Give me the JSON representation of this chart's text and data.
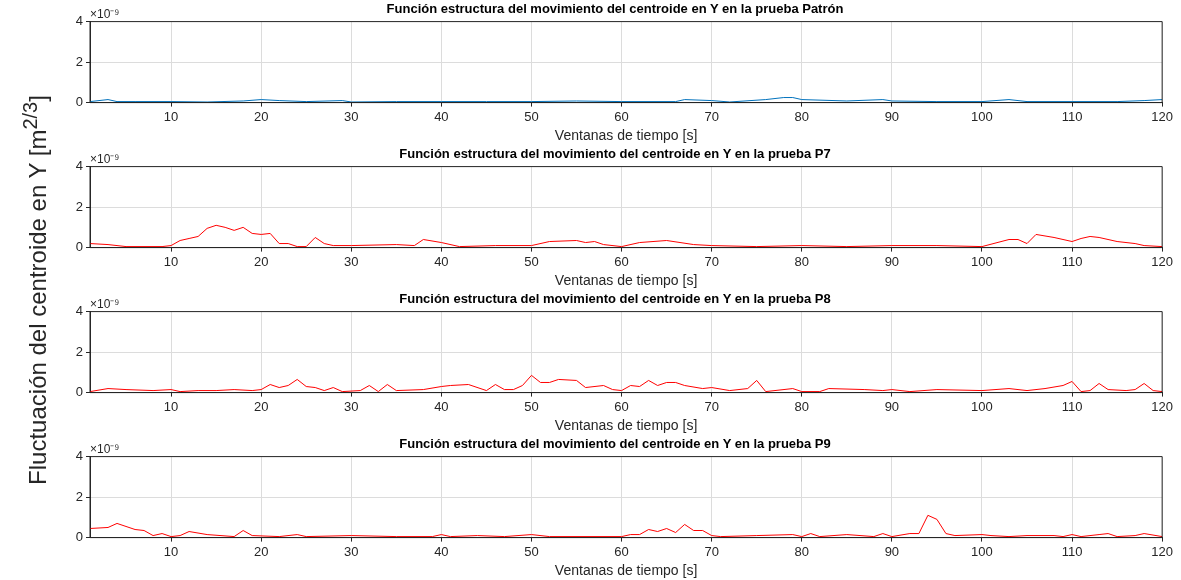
{
  "chart_data": [
    {
      "type": "line",
      "title": "Función estructura del movimiento del centroide en Y en la prueba Patrón",
      "xlabel": "Ventanas de tiempo [s]",
      "ylabel": "Fluctuación del centroide en Y [m$^{2/3}$]",
      "annotations": [
        "×10⁻⁹"
      ],
      "xlim": [
        1,
        120
      ],
      "xticks": [
        10,
        20,
        30,
        40,
        50,
        60,
        70,
        80,
        90,
        100,
        110,
        120
      ],
      "ylim": [
        0,
        4
      ],
      "yticks": [
        0,
        2,
        4
      ],
      "grid": true,
      "legend": false,
      "marker": "none",
      "line_style": "solid",
      "x": [
        1,
        3,
        4,
        6,
        10,
        14,
        18,
        20,
        22,
        25,
        29,
        30,
        35,
        40,
        45,
        50,
        55,
        60,
        66,
        67,
        70,
        72,
        76,
        78,
        79,
        80,
        85,
        89,
        90,
        95,
        100,
        103,
        105,
        110,
        115,
        118,
        120
      ],
      "series": [
        {
          "color": "#0072bd",
          "values": [
            0.05,
            0.15,
            0.05,
            0.05,
            0.05,
            0.03,
            0.08,
            0.15,
            0.1,
            0.05,
            0.1,
            0.03,
            0.05,
            0.05,
            0.05,
            0.05,
            0.08,
            0.05,
            0.05,
            0.15,
            0.1,
            0.03,
            0.15,
            0.25,
            0.25,
            0.15,
            0.08,
            0.15,
            0.08,
            0.05,
            0.05,
            0.15,
            0.05,
            0.05,
            0.05,
            0.1,
            0.15
          ]
        }
      ]
    },
    {
      "type": "line",
      "title": "Función estructura del movimiento del centroide en Y en la prueba P7",
      "xlabel": "Ventanas de tiempo [s]",
      "annotations": [
        "×10⁻⁹"
      ],
      "xlim": [
        1,
        120
      ],
      "xticks": [
        10,
        20,
        30,
        40,
        50,
        60,
        70,
        80,
        90,
        100,
        110,
        120
      ],
      "ylim": [
        0,
        4
      ],
      "yticks": [
        0,
        2,
        4
      ],
      "grid": true,
      "legend": false,
      "marker": "none",
      "line_style": "solid",
      "x": [
        1,
        3,
        5,
        9,
        10,
        11,
        12,
        13,
        14,
        15,
        16,
        17,
        18,
        19,
        20,
        21,
        22,
        23,
        24,
        25,
        26,
        27,
        28,
        30,
        35,
        37,
        38,
        40,
        42,
        46,
        50,
        52,
        55,
        56,
        57,
        58,
        60,
        62,
        65,
        68,
        70,
        75,
        80,
        85,
        90,
        95,
        100,
        103,
        104,
        105,
        106,
        108,
        110,
        111,
        112,
        113,
        115,
        117,
        118,
        120
      ],
      "series": [
        {
          "color": "#ff0000",
          "values": [
            0.2,
            0.15,
            0.05,
            0.05,
            0.1,
            0.35,
            0.45,
            0.55,
            0.95,
            1.1,
            1.0,
            0.85,
            1.0,
            0.7,
            0.65,
            0.7,
            0.2,
            0.2,
            0.05,
            0.05,
            0.5,
            0.2,
            0.1,
            0.1,
            0.15,
            0.1,
            0.4,
            0.25,
            0.05,
            0.1,
            0.1,
            0.3,
            0.35,
            0.25,
            0.3,
            0.15,
            0.05,
            0.25,
            0.35,
            0.15,
            0.1,
            0.05,
            0.1,
            0.05,
            0.1,
            0.1,
            0.05,
            0.4,
            0.4,
            0.2,
            0.65,
            0.5,
            0.3,
            0.45,
            0.55,
            0.5,
            0.3,
            0.2,
            0.1,
            0.05
          ]
        }
      ]
    },
    {
      "type": "line",
      "title": "Función estructura del movimiento del centroide en Y en la prueba P8",
      "xlabel": "Ventanas de tiempo [s]",
      "annotations": [
        "×10⁻⁹"
      ],
      "xlim": [
        1,
        120
      ],
      "xticks": [
        10,
        20,
        30,
        40,
        50,
        60,
        70,
        80,
        90,
        100,
        110,
        120
      ],
      "ylim": [
        0,
        4
      ],
      "yticks": [
        0,
        2,
        4
      ],
      "grid": true,
      "legend": false,
      "marker": "none",
      "line_style": "solid",
      "x": [
        1,
        3,
        5,
        8,
        10,
        11,
        13,
        15,
        17,
        19,
        20,
        21,
        22,
        23,
        24,
        25,
        26,
        27,
        28,
        29,
        31,
        32,
        33,
        34,
        35,
        38,
        40,
        41,
        43,
        45,
        46,
        47,
        48,
        49,
        50,
        51,
        52,
        53,
        55,
        56,
        58,
        59,
        60,
        61,
        62,
        63,
        64,
        65,
        66,
        67,
        69,
        70,
        72,
        74,
        75,
        76,
        79,
        80,
        82,
        83,
        87,
        89,
        90,
        92,
        95,
        100,
        103,
        105,
        107,
        109,
        110,
        111,
        112,
        113,
        114,
        116,
        117,
        118,
        119,
        120
      ],
      "series": [
        {
          "color": "#ff0000",
          "values": [
            0.05,
            0.2,
            0.15,
            0.1,
            0.15,
            0.05,
            0.1,
            0.1,
            0.15,
            0.1,
            0.15,
            0.4,
            0.25,
            0.35,
            0.65,
            0.3,
            0.25,
            0.1,
            0.25,
            0.05,
            0.1,
            0.35,
            0.05,
            0.4,
            0.1,
            0.15,
            0.3,
            0.35,
            0.4,
            0.1,
            0.4,
            0.15,
            0.15,
            0.35,
            0.85,
            0.5,
            0.5,
            0.65,
            0.6,
            0.25,
            0.35,
            0.15,
            0.1,
            0.35,
            0.3,
            0.6,
            0.35,
            0.5,
            0.5,
            0.35,
            0.2,
            0.25,
            0.1,
            0.2,
            0.6,
            0.05,
            0.2,
            0.05,
            0.05,
            0.2,
            0.15,
            0.1,
            0.15,
            0.05,
            0.15,
            0.1,
            0.2,
            0.1,
            0.2,
            0.35,
            0.55,
            0.05,
            0.1,
            0.45,
            0.15,
            0.1,
            0.15,
            0.45,
            0.1,
            0.05
          ]
        }
      ]
    },
    {
      "type": "line",
      "title": "Función estructura del movimiento del centroide en Y en la prueba P9",
      "xlabel": "Ventanas de tiempo [s]",
      "annotations": [
        "×10⁻⁹"
      ],
      "xlim": [
        1,
        120
      ],
      "xticks": [
        10,
        20,
        30,
        40,
        50,
        60,
        70,
        80,
        90,
        100,
        110,
        120
      ],
      "ylim": [
        0,
        4
      ],
      "yticks": [
        0,
        2,
        4
      ],
      "grid": true,
      "legend": false,
      "marker": "none",
      "line_style": "solid",
      "x": [
        1,
        3,
        4,
        6,
        7,
        8,
        9,
        10,
        11,
        12,
        14,
        17,
        18,
        19,
        22,
        24,
        25,
        30,
        35,
        39,
        40,
        41,
        44,
        47,
        50,
        52,
        60,
        61,
        62,
        63,
        64,
        65,
        66,
        67,
        68,
        69,
        70,
        71,
        75,
        79,
        80,
        81,
        82,
        85,
        88,
        89,
        90,
        92,
        93,
        94,
        95,
        96,
        97,
        100,
        101,
        103,
        105,
        108,
        109,
        110,
        111,
        113,
        114,
        115,
        117,
        118,
        120
      ],
      "series": [
        {
          "color": "#ff0000",
          "values": [
            0.45,
            0.5,
            0.7,
            0.4,
            0.35,
            0.1,
            0.2,
            0.05,
            0.1,
            0.3,
            0.15,
            0.05,
            0.35,
            0.1,
            0.05,
            0.15,
            0.05,
            0.1,
            0.05,
            0.05,
            0.15,
            0.05,
            0.1,
            0.05,
            0.15,
            0.05,
            0.05,
            0.15,
            0.15,
            0.4,
            0.3,
            0.45,
            0.25,
            0.65,
            0.35,
            0.35,
            0.1,
            0.05,
            0.1,
            0.15,
            0.05,
            0.2,
            0.05,
            0.15,
            0.05,
            0.2,
            0.05,
            0.2,
            0.2,
            1.1,
            0.9,
            0.2,
            0.1,
            0.15,
            0.1,
            0.05,
            0.1,
            0.1,
            0.05,
            0.15,
            0.05,
            0.15,
            0.2,
            0.05,
            0.1,
            0.2,
            0.05
          ]
        }
      ]
    }
  ]
}
